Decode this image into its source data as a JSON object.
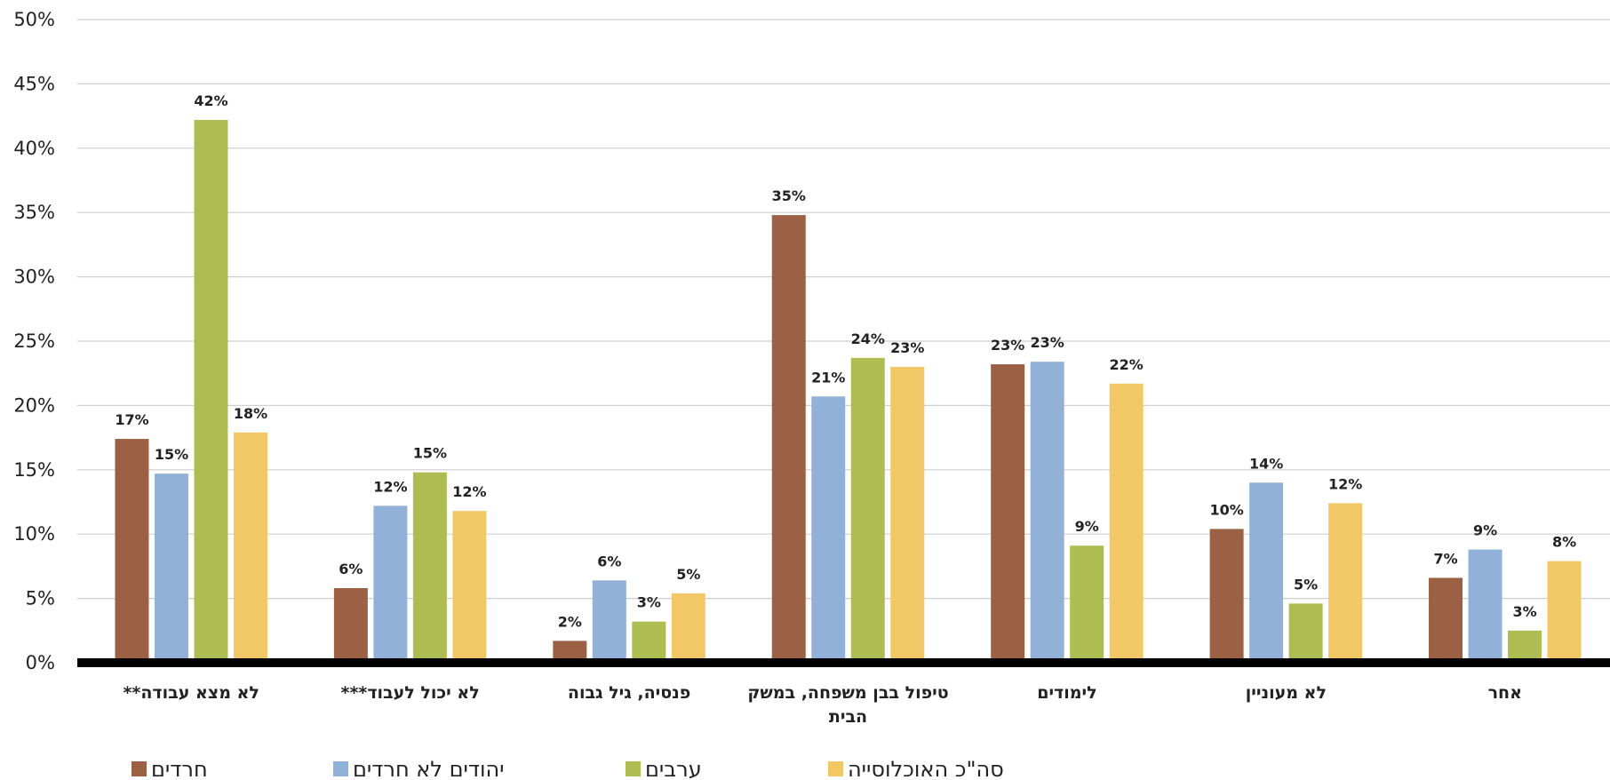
{
  "chart_data": {
    "type": "bar",
    "categories": [
      "לא מצא עבודה**",
      "לא יכול לעבוד***",
      "פנסיה, גיל גבוה",
      "טיפול בבן משפחה, במשק הבית",
      "לימודים",
      "לא מעוניין",
      "אחר"
    ],
    "series": [
      {
        "name": "חרדים",
        "color": "#9C6144",
        "values": [
          17.4,
          5.8,
          1.7,
          34.8,
          23.2,
          10.4,
          6.6
        ],
        "labels": [
          "17%",
          "6%",
          "2%",
          "35%",
          "23%",
          "10%",
          "7%"
        ]
      },
      {
        "name": "יהודים לא חרדים",
        "color": "#92B1D9",
        "values": [
          14.7,
          12.2,
          6.4,
          20.7,
          23.4,
          14.0,
          8.8
        ],
        "labels": [
          "15%",
          "12%",
          "6%",
          "21%",
          "23%",
          "14%",
          "9%"
        ]
      },
      {
        "name": "ערבים",
        "color": "#ADBD52",
        "values": [
          42.2,
          14.8,
          3.2,
          23.7,
          9.1,
          4.6,
          2.5
        ],
        "labels": [
          "42%",
          "15%",
          "3%",
          "24%",
          "9%",
          "5%",
          "3%"
        ]
      },
      {
        "name": "סה\"כ האוכלוסייה",
        "color": "#F2C866",
        "values": [
          17.9,
          11.8,
          5.4,
          23.0,
          21.7,
          12.4,
          7.9
        ],
        "labels": [
          "18%",
          "12%",
          "5%",
          "23%",
          "22%",
          "12%",
          "8%"
        ]
      }
    ],
    "y_ticks": [
      "0%",
      "5%",
      "10%",
      "15%",
      "20%",
      "25%",
      "30%",
      "35%",
      "40%",
      "45%",
      "50%"
    ],
    "ylim": [
      0,
      50
    ],
    "grid": true,
    "legend_position": "bottom-left"
  }
}
